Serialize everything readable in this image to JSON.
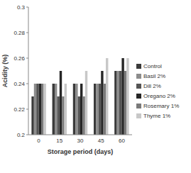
{
  "chart_data": {
    "type": "bar",
    "x_label": "Storage period (days)",
    "y_label": "Acidity (%)",
    "categories": [
      "0",
      "15",
      "30",
      "45",
      "60"
    ],
    "series": [
      {
        "name": "Control",
        "color": "#3a3a3a",
        "values": [
          0.23,
          0.24,
          0.24,
          0.24,
          0.25
        ]
      },
      {
        "name": "Basil 2%",
        "color": "#8c8c8c",
        "values": [
          0.24,
          0.24,
          0.24,
          0.24,
          0.25
        ]
      },
      {
        "name": "Dill 2%",
        "color": "#555555",
        "values": [
          0.24,
          0.23,
          0.23,
          0.24,
          0.25
        ]
      },
      {
        "name": "Oregano 2%",
        "color": "#262626",
        "values": [
          0.24,
          0.25,
          0.24,
          0.25,
          0.26
        ]
      },
      {
        "name": "Rosemary 1%",
        "color": "#7a7a7a",
        "values": [
          0.24,
          0.23,
          0.23,
          0.24,
          0.25
        ]
      },
      {
        "name": "Thyme 1%",
        "color": "#c8c8c8",
        "values": [
          0.24,
          0.24,
          0.25,
          0.26,
          0.26
        ]
      }
    ],
    "ylim": [
      0.2,
      0.3
    ],
    "yticks": [
      0.2,
      0.22,
      0.24,
      0.26,
      0.28,
      0.3
    ],
    "grid": false,
    "legend": "right"
  }
}
